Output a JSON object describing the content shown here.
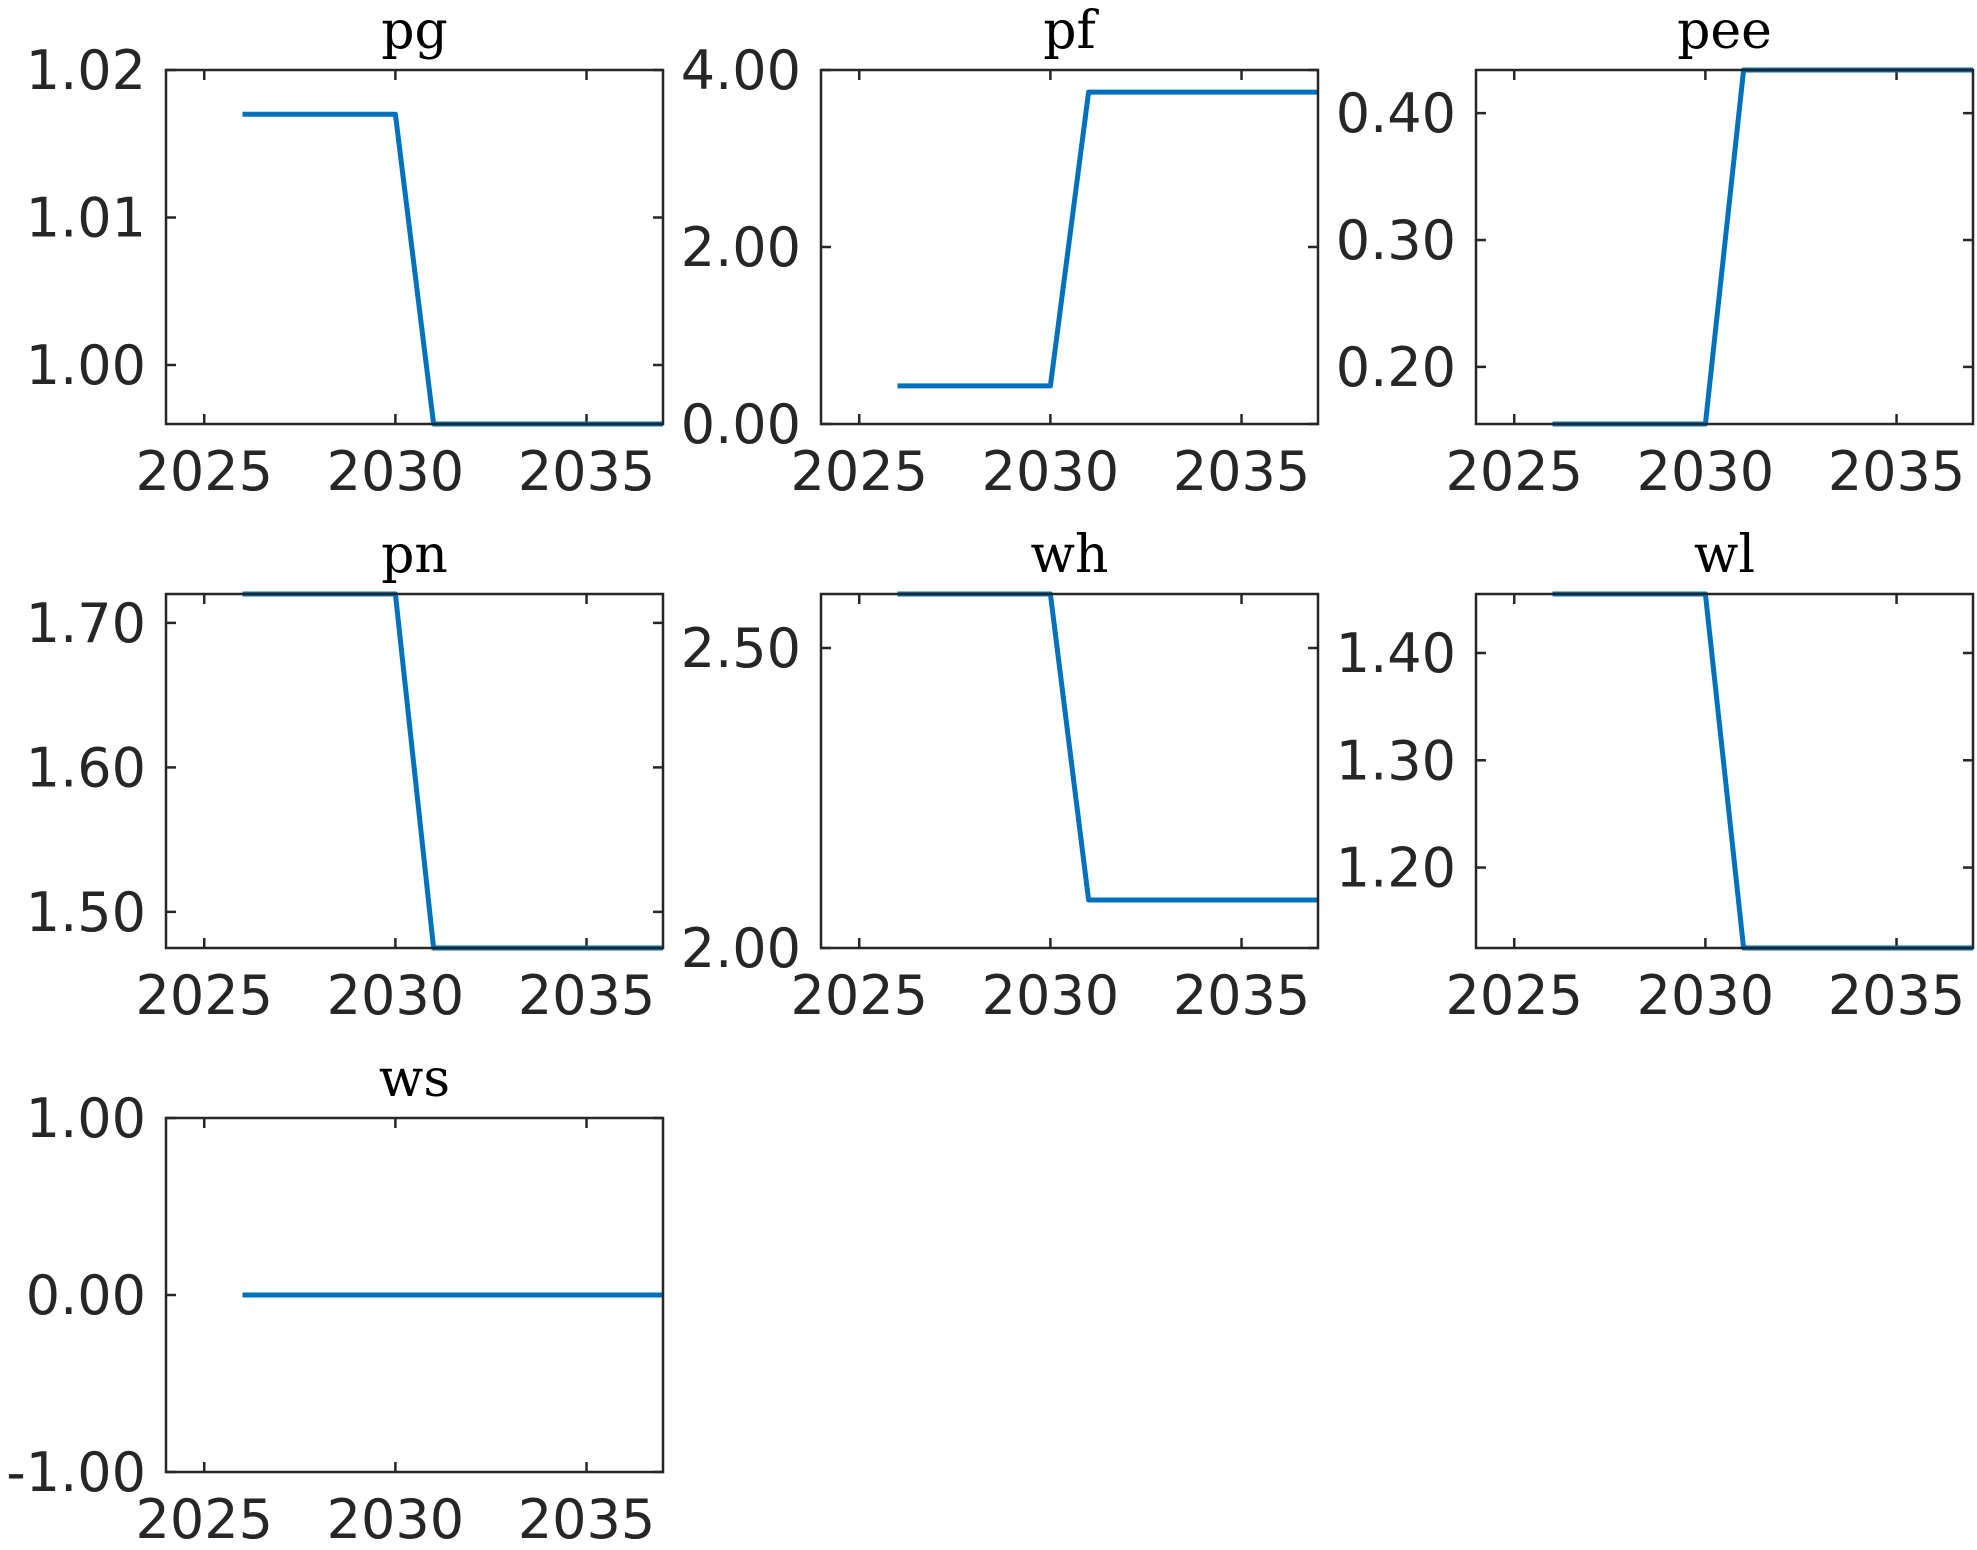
{
  "chart_data": [
    {
      "type": "line",
      "title": "pg",
      "x": [
        2026,
        2027,
        2028,
        2029,
        2030,
        2031,
        2032,
        2033,
        2034,
        2035,
        2036,
        2037
      ],
      "series": [
        {
          "values": [
            1.017,
            1.017,
            1.017,
            1.017,
            1.017,
            0.996,
            0.996,
            0.996,
            0.996,
            0.996,
            0.996,
            0.996
          ]
        }
      ],
      "xlim": [
        2024,
        2037
      ],
      "ylim": [
        0.996,
        1.02
      ],
      "xticks": [
        "2025",
        "2030",
        "2035"
      ],
      "yticks": [
        "1.00",
        "1.01",
        "1.02"
      ],
      "color": "#0072BD"
    },
    {
      "type": "line",
      "title": "pf",
      "x": [
        2026,
        2027,
        2028,
        2029,
        2030,
        2031,
        2032,
        2033,
        2034,
        2035,
        2036,
        2037
      ],
      "series": [
        {
          "values": [
            0.43,
            0.43,
            0.43,
            0.43,
            0.43,
            3.75,
            3.75,
            3.75,
            3.75,
            3.75,
            3.75,
            3.75
          ]
        }
      ],
      "xlim": [
        2024,
        2037
      ],
      "ylim": [
        0,
        4
      ],
      "xticks": [
        "2025",
        "2030",
        "2035"
      ],
      "yticks": [
        "0.00",
        "2.00",
        "4.00"
      ],
      "color": "#0072BD"
    },
    {
      "type": "line",
      "title": "pee",
      "x": [
        2026,
        2027,
        2028,
        2029,
        2030,
        2031,
        2032,
        2033,
        2034,
        2035,
        2036,
        2037
      ],
      "series": [
        {
          "values": [
            0.155,
            0.155,
            0.155,
            0.155,
            0.155,
            0.434,
            0.434,
            0.434,
            0.434,
            0.434,
            0.434,
            0.434
          ]
        }
      ],
      "xlim": [
        2024,
        2037
      ],
      "ylim": [
        0.155,
        0.434
      ],
      "xticks": [
        "2025",
        "2030",
        "2035"
      ],
      "yticks": [
        "0.20",
        "0.30",
        "0.40"
      ],
      "color": "#0072BD"
    },
    {
      "type": "line",
      "title": "pn",
      "x": [
        2026,
        2027,
        2028,
        2029,
        2030,
        2031,
        2032,
        2033,
        2034,
        2035,
        2036,
        2037
      ],
      "series": [
        {
          "values": [
            1.72,
            1.72,
            1.72,
            1.72,
            1.72,
            1.475,
            1.475,
            1.475,
            1.475,
            1.475,
            1.475,
            1.475
          ]
        }
      ],
      "xlim": [
        2024,
        2037
      ],
      "ylim": [
        1.475,
        1.72
      ],
      "xticks": [
        "2025",
        "2030",
        "2035"
      ],
      "yticks": [
        "1.50",
        "1.60",
        "1.70"
      ],
      "color": "#0072BD"
    },
    {
      "type": "line",
      "title": "wh",
      "x": [
        2026,
        2027,
        2028,
        2029,
        2030,
        2031,
        2032,
        2033,
        2034,
        2035,
        2036,
        2037
      ],
      "series": [
        {
          "values": [
            2.59,
            2.59,
            2.59,
            2.59,
            2.59,
            2.08,
            2.08,
            2.08,
            2.08,
            2.08,
            2.08,
            2.08
          ]
        }
      ],
      "xlim": [
        2024,
        2037
      ],
      "ylim": [
        2.0,
        2.59
      ],
      "xticks": [
        "2025",
        "2030",
        "2035"
      ],
      "yticks": [
        "2.00",
        "2.50"
      ],
      "color": "#0072BD"
    },
    {
      "type": "line",
      "title": "wl",
      "x": [
        2026,
        2027,
        2028,
        2029,
        2030,
        2031,
        2032,
        2033,
        2034,
        2035,
        2036,
        2037
      ],
      "series": [
        {
          "values": [
            1.455,
            1.455,
            1.455,
            1.455,
            1.455,
            1.125,
            1.125,
            1.125,
            1.125,
            1.125,
            1.125,
            1.125
          ]
        }
      ],
      "xlim": [
        2024,
        2037
      ],
      "ylim": [
        1.125,
        1.455
      ],
      "xticks": [
        "2025",
        "2030",
        "2035"
      ],
      "yticks": [
        "1.20",
        "1.30",
        "1.40"
      ],
      "color": "#0072BD"
    },
    {
      "type": "line",
      "title": "ws",
      "x": [
        2026,
        2027,
        2028,
        2029,
        2030,
        2031,
        2032,
        2033,
        2034,
        2035,
        2036,
        2037
      ],
      "series": [
        {
          "values": [
            0,
            0,
            0,
            0,
            0,
            0,
            0,
            0,
            0,
            0,
            0,
            0
          ]
        }
      ],
      "xlim": [
        2024,
        2037
      ],
      "ylim": [
        -1,
        1
      ],
      "xticks": [
        "2025",
        "2030",
        "2035"
      ],
      "yticks": [
        "-1.00",
        "0.00",
        "1.00"
      ],
      "color": "#0072BD"
    }
  ]
}
